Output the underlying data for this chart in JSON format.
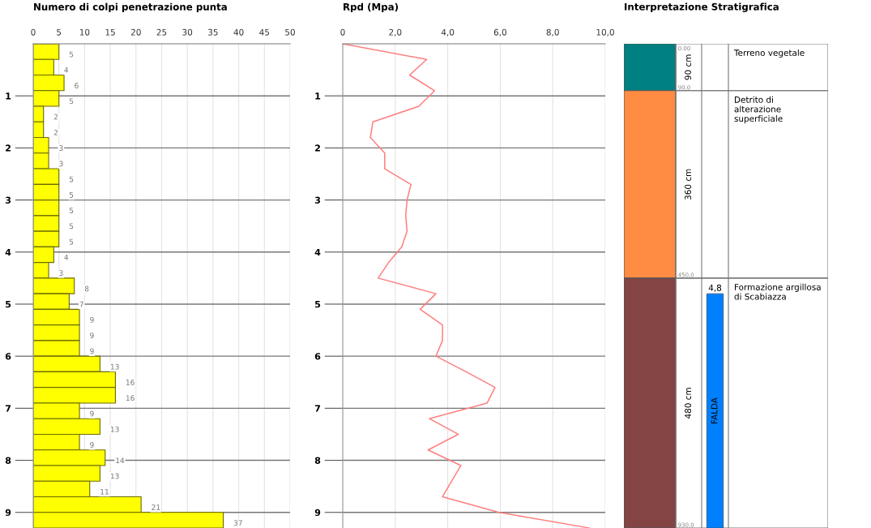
{
  "chart_data": [
    {
      "type": "bar",
      "orientation": "horizontal",
      "title": "Numero di colpi penetrazione punta",
      "x": [
        0.15,
        0.45,
        0.75,
        1.05,
        1.35,
        1.65,
        1.95,
        2.25,
        2.55,
        2.85,
        3.15,
        3.45,
        3.75,
        4.05,
        4.35,
        4.65,
        4.95,
        5.25,
        5.55,
        5.85,
        6.15,
        6.45,
        6.75,
        7.05,
        7.35,
        7.65,
        7.95,
        8.25,
        8.55,
        8.85,
        9.15
      ],
      "values": [
        5,
        4,
        6,
        5,
        2,
        2,
        3,
        3,
        5,
        5,
        5,
        5,
        5,
        4,
        3,
        8,
        7,
        9,
        9,
        9,
        13,
        16,
        16,
        9,
        13,
        9,
        14,
        13,
        11,
        21,
        37
      ],
      "color": "#ffff00",
      "data_labels": true,
      "xlim": [
        0,
        50
      ],
      "xticks": [
        0,
        5,
        10,
        15,
        20,
        25,
        30,
        35,
        40,
        45,
        50
      ],
      "ylim": [
        9.3,
        0
      ],
      "yticks": [
        1,
        2,
        3,
        4,
        5,
        6,
        7,
        8,
        9
      ],
      "grid": true
    },
    {
      "type": "line",
      "orientation": "horizontal",
      "title": "Rpd (Mpa)",
      "x": [
        0,
        0.3,
        0.6,
        0.9,
        1.2,
        1.5,
        1.8,
        2.1,
        2.4,
        2.7,
        3.0,
        3.3,
        3.6,
        3.9,
        4.2,
        4.5,
        4.8,
        5.1,
        5.4,
        5.7,
        6.0,
        6.3,
        6.6,
        6.9,
        7.2,
        7.5,
        7.8,
        8.1,
        8.4,
        8.7,
        9.0,
        9.3
      ],
      "values": [
        0,
        3.2,
        2.55,
        3.5,
        2.9,
        1.15,
        1.05,
        1.6,
        1.6,
        2.6,
        2.45,
        2.4,
        2.45,
        2.25,
        1.75,
        1.35,
        3.55,
        2.95,
        3.8,
        3.8,
        3.55,
        4.7,
        5.8,
        5.5,
        3.3,
        4.4,
        3.25,
        4.5,
        4.15,
        3.8,
        5.95,
        9.4
      ],
      "color": "#ff7f7f",
      "xlim": [
        0,
        10
      ],
      "xticks": [
        0,
        {
          "value": 2,
          "label": "2,0"
        },
        {
          "value": 4,
          "label": "4,0"
        },
        {
          "value": 6,
          "label": "6,0"
        },
        {
          "value": 8,
          "label": "8,0"
        },
        {
          "value": 10,
          "label": "10,0"
        }
      ],
      "ylim": [
        9.3,
        0
      ],
      "yticks": [
        1,
        2,
        3,
        4,
        5,
        6,
        7,
        8,
        9
      ],
      "grid": true
    },
    {
      "type": "other",
      "title": "Interpretazione Stratigrafica",
      "categories": [
        "Terreno vegetale",
        "Detrito di alterazione superficiale",
        "Formazione argillosa di Scabiazza"
      ],
      "values": [
        90,
        360,
        480
      ],
      "value_labels": [
        "90 cm",
        "360 cm",
        "480 cm"
      ],
      "colors": [
        "#008080",
        "#ff8c42",
        "#844444"
      ],
      "annotations": [
        "0.00",
        "90,0",
        "450,0",
        "930,0",
        "4,8"
      ],
      "bands": [
        {
          "axis": "y",
          "label": "FALDA",
          "color": "#0080ff"
        }
      ]
    }
  ]
}
